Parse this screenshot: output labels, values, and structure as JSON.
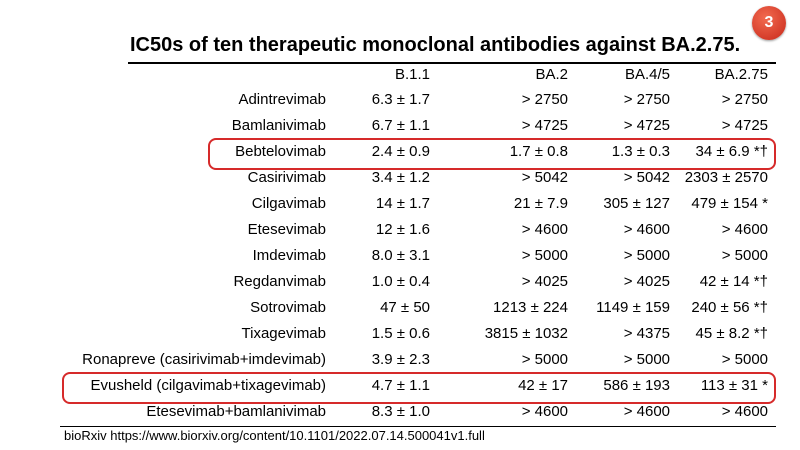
{
  "badge": "3",
  "title": "IC50s of ten therapeutic monoclonal antibodies against BA.2.75.",
  "table": {
    "headers": [
      "",
      "B.1.1",
      "BA.2",
      "BA.4/5",
      "BA.2.75"
    ],
    "rows": [
      [
        "Adintrevimab",
        "6.3 ± 1.7",
        "> 2750",
        "> 2750",
        "> 2750"
      ],
      [
        "Bamlanivimab",
        "6.7 ± 1.1",
        "> 4725",
        "> 4725",
        "> 4725"
      ],
      [
        "Bebtelovimab",
        "2.4 ± 0.9",
        "1.7 ± 0.8",
        "1.3 ± 0.3",
        "34 ± 6.9 *†"
      ],
      [
        "Casirivimab",
        "3.4 ± 1.2",
        "> 5042",
        "> 5042",
        "2303 ± 2570"
      ],
      [
        "Cilgavimab",
        "14 ± 1.7",
        "21 ± 7.9",
        "305 ± 127",
        "479 ± 154 *"
      ],
      [
        "Etesevimab",
        "12 ± 1.6",
        "> 4600",
        "> 4600",
        "> 4600"
      ],
      [
        "Imdevimab",
        "8.0 ± 3.1",
        "> 5000",
        "> 5000",
        "> 5000"
      ],
      [
        "Regdanvimab",
        "1.0 ± 0.4",
        "> 4025",
        "> 4025",
        "42 ± 14 *†"
      ],
      [
        "Sotrovimab",
        "47 ± 50",
        "1213 ± 224",
        "1149 ± 159",
        "240 ± 56 *†"
      ],
      [
        "Tixagevimab",
        "1.5 ± 0.6",
        "3815 ± 1032",
        "> 4375",
        "45 ± 8.2 *†"
      ],
      [
        "Ronapreve (casirivimab+imdevimab)",
        "3.9 ± 2.3",
        "> 5000",
        "> 5000",
        "> 5000"
      ],
      [
        "Evusheld (cilgavimab+tixagevimab)",
        "4.7 ± 1.1",
        "42 ± 17",
        "586 ± 193",
        "113 ± 31 *"
      ],
      [
        "Etesevimab+bamlanivimab",
        "8.3 ± 1.0",
        "> 4600",
        "> 4600",
        "> 4600"
      ]
    ]
  },
  "highlighted_rows": [
    "Bebtelovimab",
    "Evusheld (cilgavimab+tixagevimab)"
  ],
  "highlight_color": "#d62a2a",
  "citation": "bioRxiv https://www.biorxiv.org/content/10.1101/2022.07.14.500041v1.full"
}
